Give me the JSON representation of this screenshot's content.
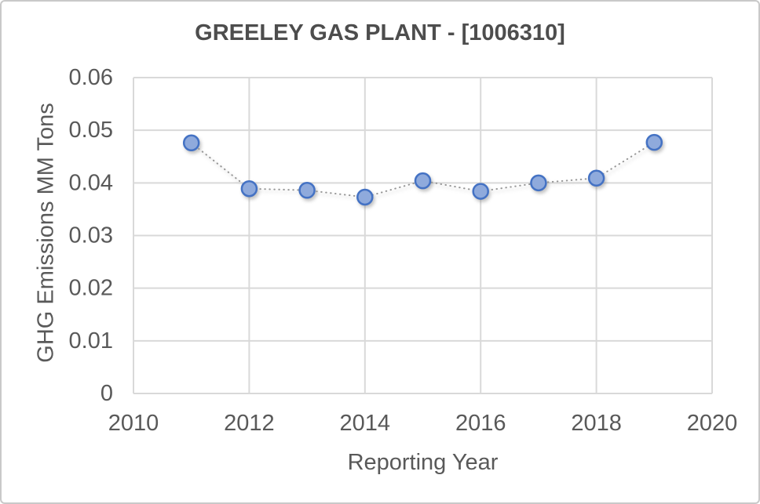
{
  "chart_data": {
    "type": "line",
    "title": "GREELEY GAS PLANT - [1006310]",
    "xlabel": "Reporting Year",
    "ylabel": "GHG Emissions MM Tons",
    "x": [
      2011,
      2012,
      2013,
      2014,
      2015,
      2016,
      2017,
      2018,
      2019
    ],
    "values": [
      0.0476,
      0.0389,
      0.0386,
      0.0373,
      0.0404,
      0.0384,
      0.04,
      0.0409,
      0.0477
    ],
    "series_name": "GHG Emissions",
    "xlim": [
      2010,
      2020
    ],
    "ylim": [
      0,
      0.06
    ],
    "xticks": [
      2010,
      2012,
      2014,
      2016,
      2018,
      2020
    ],
    "yticks": [
      0,
      0.01,
      0.02,
      0.03,
      0.04,
      0.05,
      0.06
    ],
    "ytick_labels": [
      "0",
      "0.01",
      "0.02",
      "0.03",
      "0.04",
      "0.05",
      "0.06"
    ],
    "grid": true,
    "legend_position": "none",
    "line_style": "dotted",
    "line_color": "#969696",
    "marker_fill": "#8faadc",
    "marker_stroke": "#4472c4",
    "grid_color": "#d9d9d9",
    "text_color": "#595959",
    "title_color": "#4d4d4d",
    "background": "#ffffff",
    "border_color": "#c9c9c9"
  }
}
